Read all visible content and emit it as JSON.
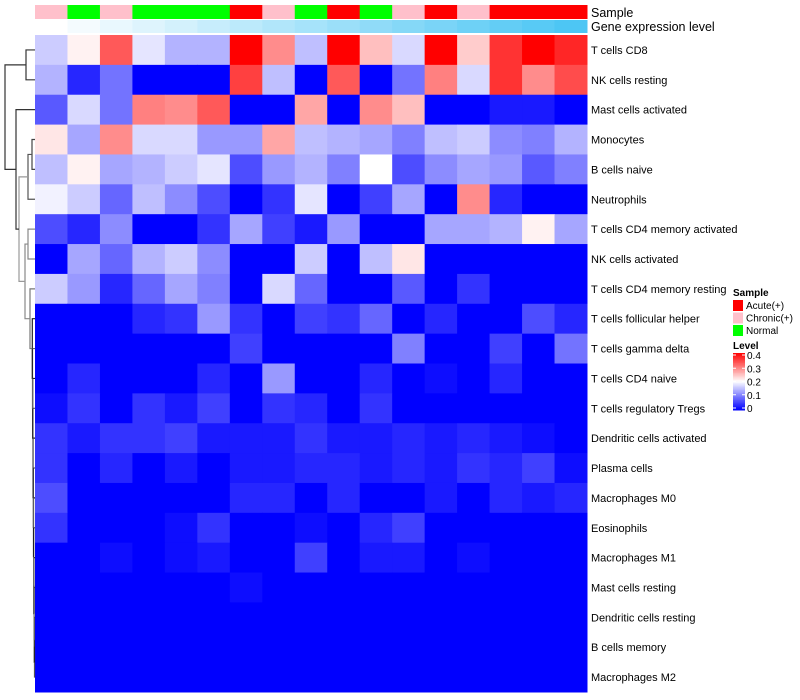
{
  "chart_data": {
    "type": "heatmap",
    "title": "",
    "annotation_labels": [
      "Sample",
      "Gene expression level"
    ],
    "sample_annotation": [
      "Chronic(+)",
      "Normal",
      "Chronic(+)",
      "Normal",
      "Normal",
      "Normal",
      "Acute(+)",
      "Chronic(+)",
      "Normal",
      "Acute(+)",
      "Normal",
      "Chronic(+)",
      "Acute(+)",
      "Chronic(+)",
      "Acute(+)",
      "Acute(+)",
      "Acute(+)"
    ],
    "rows": [
      "T cells CD8",
      "NK cells resting",
      "Mast cells activated",
      "Monocytes",
      "B cells naive",
      "Neutrophils",
      "T cells CD4 memory activated",
      "NK cells activated",
      "T cells CD4 memory resting",
      "T cells follicular helper",
      "T cells gamma delta",
      "T cells CD4 naive",
      "T cells regulatory  Tregs",
      "Dendritic cells activated",
      "Plasma cells",
      "Macrophages M0",
      "Eosinophils",
      "Macrophages M1",
      "Mast cells resting",
      "Dendritic cells resting",
      "B cells memory",
      "Macrophages M2"
    ],
    "values": [
      [
        0.16,
        0.21,
        0.33,
        0.18,
        0.14,
        0.14,
        0.4,
        0.29,
        0.15,
        0.4,
        0.25,
        0.17,
        0.4,
        0.24,
        0.36,
        0.4,
        0.37
      ],
      [
        0.14,
        0.03,
        0.09,
        0,
        0,
        0,
        0.35,
        0.15,
        0,
        0.33,
        0,
        0.09,
        0.3,
        0.17,
        0.36,
        0.29,
        0.34
      ],
      [
        0.07,
        0.17,
        0.09,
        0.3,
        0.29,
        0.33,
        0,
        0,
        0.27,
        0,
        0.29,
        0.25,
        0,
        0,
        0.02,
        0.02,
        0
      ],
      [
        0.22,
        0.13,
        0.29,
        0.17,
        0.17,
        0.12,
        0.12,
        0.27,
        0.15,
        0.14,
        0.13,
        0.1,
        0.15,
        0.16,
        0.11,
        0.1,
        0.14
      ],
      [
        0.15,
        0.21,
        0.13,
        0.14,
        0.16,
        0.18,
        0.06,
        0.12,
        0.14,
        0.1,
        0.2,
        0.06,
        0.11,
        0.13,
        0.12,
        0.07,
        0.1
      ],
      [
        0.19,
        0.16,
        0.08,
        0.15,
        0.11,
        0.06,
        0,
        0.04,
        0.18,
        0,
        0.05,
        0.13,
        0,
        0.29,
        0.03,
        0,
        0
      ],
      [
        0.06,
        0.03,
        0.11,
        0,
        0,
        0.04,
        0.13,
        0.05,
        0.02,
        0.12,
        0,
        0,
        0.13,
        0.13,
        0.14,
        0.21,
        0.13
      ],
      [
        0,
        0.13,
        0.08,
        0.14,
        0.16,
        0.11,
        0,
        0,
        0.16,
        0,
        0.15,
        0.22,
        0,
        0,
        0,
        0,
        0
      ],
      [
        0.16,
        0.12,
        0.03,
        0.08,
        0.13,
        0.1,
        0,
        0.17,
        0.08,
        0,
        0,
        0.07,
        0,
        0.04,
        0,
        0,
        0
      ],
      [
        0,
        0,
        0,
        0.03,
        0.04,
        0.12,
        0.04,
        0,
        0.05,
        0.04,
        0.08,
        0,
        0.03,
        0,
        0,
        0.06,
        0.03
      ],
      [
        0,
        0,
        0,
        0,
        0,
        0,
        0.05,
        0,
        0,
        0,
        0,
        0.1,
        0,
        0,
        0.05,
        0,
        0.09
      ],
      [
        0,
        0.03,
        0,
        0,
        0,
        0.03,
        0,
        0.12,
        0,
        0,
        0.03,
        0,
        0.01,
        0,
        0.03,
        0,
        0
      ],
      [
        0.01,
        0.04,
        0,
        0.04,
        0.02,
        0.05,
        0,
        0.04,
        0.03,
        0,
        0.04,
        0,
        0,
        0,
        0,
        0,
        0
      ],
      [
        0.04,
        0.02,
        0.04,
        0.04,
        0.05,
        0.02,
        0.02,
        0.02,
        0.04,
        0.02,
        0.02,
        0.03,
        0.02,
        0.03,
        0.02,
        0.01,
        0
      ],
      [
        0.04,
        0,
        0.03,
        0,
        0.02,
        0,
        0.02,
        0.02,
        0.03,
        0.03,
        0.02,
        0.03,
        0.02,
        0.04,
        0.03,
        0.05,
        0.01
      ],
      [
        0.06,
        0,
        0,
        0,
        0,
        0,
        0.03,
        0.03,
        0,
        0.03,
        0,
        0,
        0.02,
        0,
        0.03,
        0.02,
        0.03
      ],
      [
        0.04,
        0,
        0,
        0,
        0.01,
        0.04,
        0,
        0,
        0.01,
        0,
        0.03,
        0.05,
        0,
        0,
        0,
        0,
        0
      ],
      [
        0,
        0,
        0.01,
        0,
        0.01,
        0.02,
        0,
        0,
        0.05,
        0,
        0.02,
        0.02,
        0,
        0.01,
        0,
        0,
        0
      ],
      [
        0,
        0,
        0,
        0,
        0,
        0,
        0.01,
        0,
        0,
        0,
        0,
        0,
        0,
        0,
        0,
        0,
        0
      ],
      [
        0,
        0,
        0,
        0,
        0,
        0,
        0,
        0,
        0,
        0,
        0,
        0,
        0,
        0,
        0,
        0,
        0
      ],
      [
        0,
        0,
        0,
        0,
        0,
        0,
        0,
        0,
        0,
        0,
        0,
        0,
        0,
        0,
        0,
        0,
        0
      ],
      [
        0,
        0,
        0,
        0,
        0,
        0,
        0,
        0,
        0,
        0,
        0,
        0,
        0,
        0,
        0,
        0,
        0
      ]
    ],
    "color_range": [
      0,
      0.4
    ],
    "colors": {
      "low": "#0000ff",
      "mid": "#ffffff",
      "high": "#ff0000",
      "gene_low": "#ffffff",
      "gene_high": "#4dc6f4"
    },
    "legend": {
      "sample_title": "Sample",
      "sample_items": [
        {
          "label": "Acute(+)",
          "color": "#ff0000"
        },
        {
          "label": "Chronic(+)",
          "color": "#ffc0cb"
        },
        {
          "label": "Normal",
          "color": "#00ff00"
        }
      ],
      "level_title": "Level",
      "level_ticks": [
        "0.4",
        "0.3",
        "0.2",
        "0.1",
        "0"
      ],
      "placement": "right"
    }
  }
}
